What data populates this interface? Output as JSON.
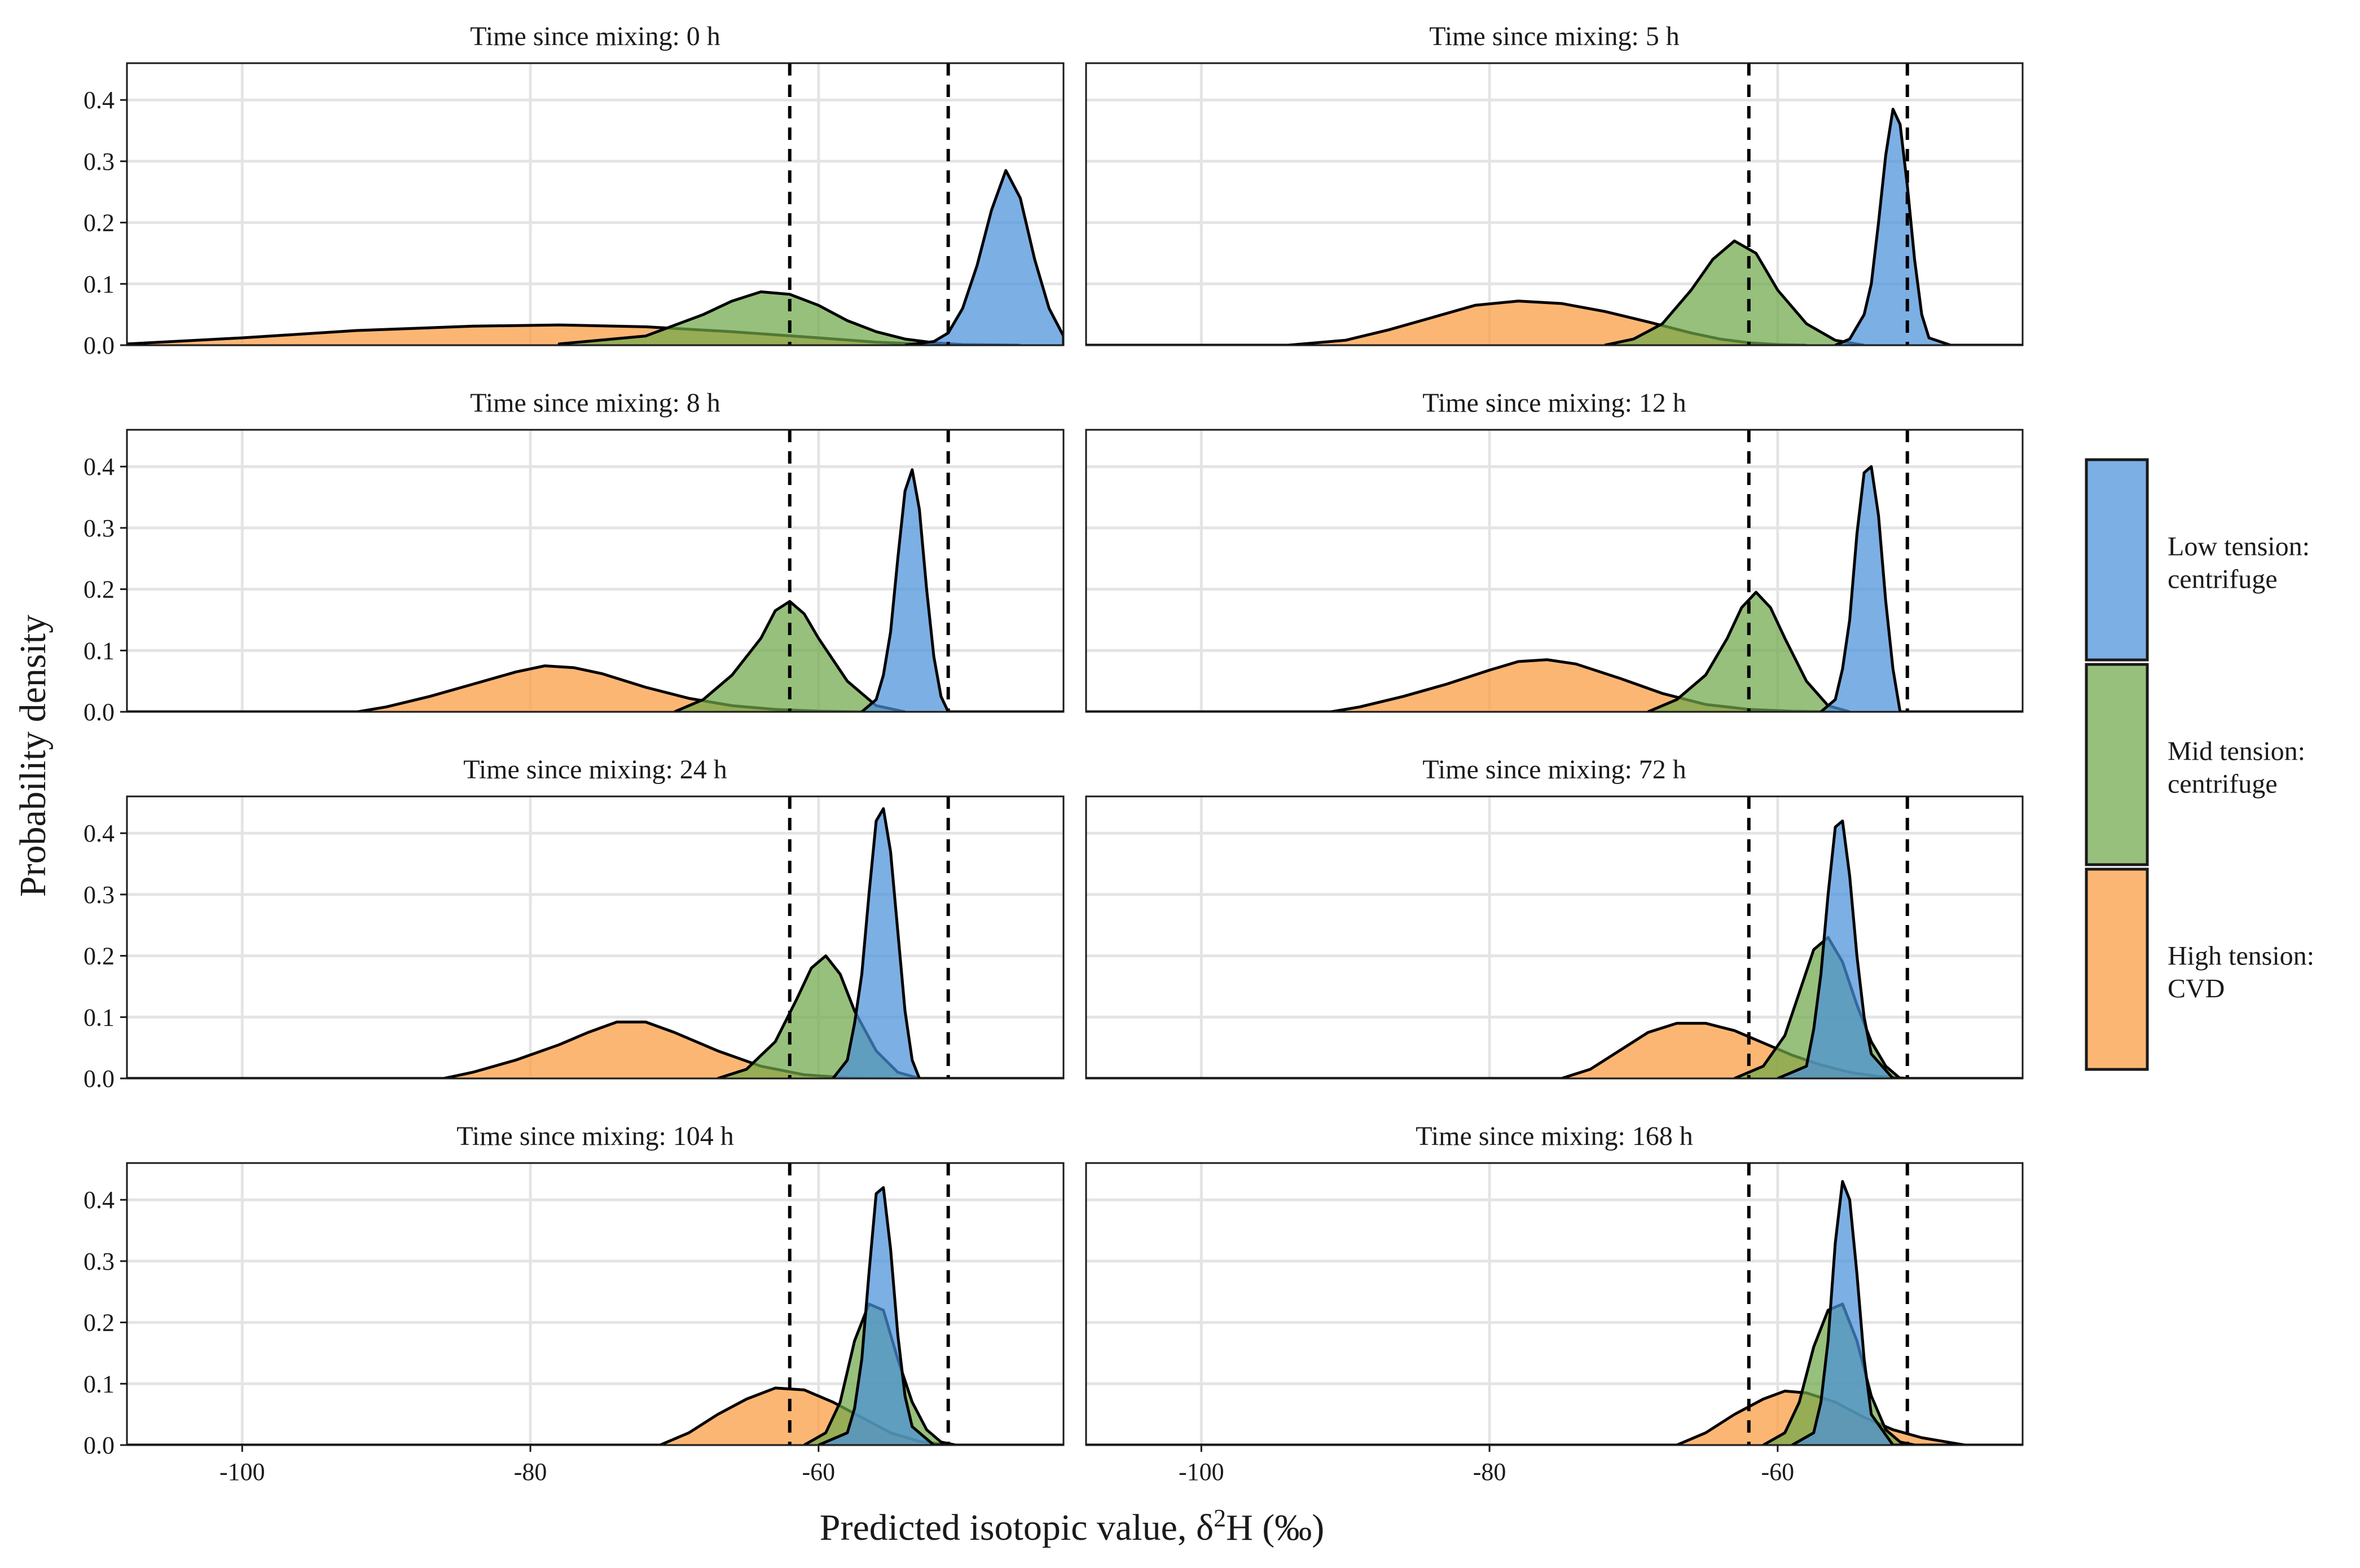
{
  "chart_data": {
    "type": "area",
    "facet_title_prefix": "Time since mixing: ",
    "xlabel": "Predicted isotopic value, δ",
    "xlabel_sup": "2",
    "xlabel_suffix": "H (‰)",
    "ylabel": "Probability density",
    "xlim": [
      -108,
      -43
    ],
    "ylim": [
      0,
      0.46
    ],
    "xticks": [
      -100,
      -80,
      -60
    ],
    "yticks": [
      0.0,
      0.1,
      0.2,
      0.3,
      0.4
    ],
    "xtick_labels": [
      "-100",
      "-80",
      "-60"
    ],
    "ytick_labels": [
      "0.0",
      "0.1",
      "0.2",
      "0.3",
      "0.4"
    ],
    "grid": true,
    "reference_lines": [
      -62,
      -51
    ],
    "legend": {
      "position": "right",
      "entries": [
        {
          "key": "low",
          "line1": "Low tension:",
          "line2": "centrifuge",
          "color": "#4a90d9"
        },
        {
          "key": "mid",
          "line1": "Mid tension:",
          "line2": "centrifuge",
          "color": "#6fa84a"
        },
        {
          "key": "high",
          "line1": "High tension:",
          "line2": "CVD",
          "color": "#fb9a3e"
        }
      ]
    },
    "panels": [
      {
        "title": "Time since mixing: 0 h",
        "series": [
          {
            "group": "high",
            "x": [
              -108,
              -100,
              -92,
              -84,
              -78,
              -72,
              -66,
              -60,
              -56,
              -52
            ],
            "y": [
              0.002,
              0.012,
              0.024,
              0.031,
              0.033,
              0.03,
              0.022,
              0.012,
              0.005,
              0.001
            ]
          },
          {
            "group": "mid",
            "x": [
              -78,
              -72,
              -68,
              -66,
              -64,
              -62,
              -60,
              -58,
              -56,
              -54,
              -52,
              -50,
              -46
            ],
            "y": [
              0.002,
              0.015,
              0.05,
              0.072,
              0.087,
              0.083,
              0.065,
              0.04,
              0.022,
              0.01,
              0.004,
              0.001,
              0
            ]
          },
          {
            "group": "low",
            "x": [
              -54,
              -52,
              -51,
              -50,
              -49,
              -48,
              -47,
              -46,
              -45,
              -44,
              -43
            ],
            "y": [
              0,
              0.006,
              0.02,
              0.06,
              0.13,
              0.22,
              0.285,
              0.24,
              0.14,
              0.06,
              0.015
            ]
          }
        ]
      },
      {
        "title": "Time since mixing: 5 h",
        "series": [
          {
            "group": "high",
            "x": [
              -108,
              -94,
              -90,
              -87,
              -84,
              -81,
              -78,
              -75,
              -72,
              -69,
              -66,
              -64,
              -62,
              -60,
              -58
            ],
            "y": [
              0,
              0,
              0.008,
              0.025,
              0.045,
              0.065,
              0.072,
              0.068,
              0.055,
              0.038,
              0.02,
              0.01,
              0.004,
              0.001,
              0
            ]
          },
          {
            "group": "mid",
            "x": [
              -72,
              -70,
              -68,
              -66,
              -64.5,
              -63,
              -61.5,
              -60,
              -58,
              -56,
              -54
            ],
            "y": [
              0,
              0.01,
              0.035,
              0.09,
              0.14,
              0.17,
              0.15,
              0.09,
              0.035,
              0.008,
              0
            ]
          },
          {
            "group": "low",
            "x": [
              -56,
              -55,
              -54,
              -53.5,
              -53,
              -52.5,
              -52,
              -51.5,
              -51,
              -50.5,
              -50,
              -49.5,
              -48,
              -43
            ],
            "y": [
              0,
              0.01,
              0.05,
              0.1,
              0.2,
              0.31,
              0.385,
              0.36,
              0.26,
              0.14,
              0.05,
              0.012,
              0,
              0
            ]
          }
        ]
      },
      {
        "title": "Time since mixing: 8 h",
        "series": [
          {
            "group": "high",
            "x": [
              -108,
              -92,
              -90,
              -87,
              -84,
              -81,
              -79,
              -77,
              -75,
              -72,
              -69,
              -66,
              -63,
              -60,
              -57
            ],
            "y": [
              0,
              0,
              0.008,
              0.025,
              0.045,
              0.065,
              0.075,
              0.072,
              0.062,
              0.04,
              0.022,
              0.01,
              0.004,
              0.001,
              0
            ]
          },
          {
            "group": "mid",
            "x": [
              -70,
              -68,
              -66,
              -64,
              -63,
              -62,
              -61,
              -60,
              -58,
              -56,
              -54
            ],
            "y": [
              0,
              0.02,
              0.06,
              0.12,
              0.165,
              0.18,
              0.16,
              0.12,
              0.05,
              0.01,
              0
            ]
          },
          {
            "group": "low",
            "x": [
              -57,
              -56,
              -55.5,
              -55,
              -54.5,
              -54,
              -53.5,
              -53,
              -52.5,
              -52,
              -51.5,
              -51,
              -43
            ],
            "y": [
              0,
              0.02,
              0.06,
              0.13,
              0.25,
              0.36,
              0.395,
              0.33,
              0.2,
              0.09,
              0.025,
              0,
              0
            ]
          }
        ]
      },
      {
        "title": "Time since mixing: 12 h",
        "series": [
          {
            "group": "high",
            "x": [
              -108,
              -91,
              -89,
              -86,
              -83,
              -80,
              -78,
              -76,
              -74,
              -71,
              -68,
              -65,
              -62,
              -59,
              -56
            ],
            "y": [
              0,
              0,
              0.008,
              0.025,
              0.045,
              0.068,
              0.082,
              0.085,
              0.078,
              0.055,
              0.03,
              0.012,
              0.004,
              0.001,
              0
            ]
          },
          {
            "group": "mid",
            "x": [
              -69,
              -67,
              -65,
              -63.5,
              -62.5,
              -61.5,
              -60.5,
              -59.5,
              -58,
              -56.5,
              -55
            ],
            "y": [
              0,
              0.02,
              0.06,
              0.12,
              0.17,
              0.195,
              0.17,
              0.12,
              0.05,
              0.01,
              0
            ]
          },
          {
            "group": "low",
            "x": [
              -57,
              -56,
              -55.5,
              -55,
              -54.5,
              -54,
              -53.5,
              -53,
              -52.5,
              -52,
              -51.5,
              -43
            ],
            "y": [
              0,
              0.02,
              0.07,
              0.15,
              0.29,
              0.39,
              0.4,
              0.32,
              0.18,
              0.07,
              0,
              0
            ]
          }
        ]
      },
      {
        "title": "Time since mixing: 24 h",
        "series": [
          {
            "group": "high",
            "x": [
              -108,
              -86,
              -84,
              -81,
              -78,
              -76,
              -74,
              -72,
              -70,
              -67,
              -64,
              -61,
              -58,
              -55
            ],
            "y": [
              0,
              0,
              0.01,
              0.03,
              0.055,
              0.075,
              0.092,
              0.092,
              0.075,
              0.045,
              0.02,
              0.006,
              0.001,
              0
            ]
          },
          {
            "group": "mid",
            "x": [
              -67,
              -65,
              -63,
              -61.5,
              -60.5,
              -59.5,
              -58.5,
              -57.5,
              -56,
              -54.5,
              -53
            ],
            "y": [
              0,
              0.015,
              0.06,
              0.13,
              0.18,
              0.2,
              0.17,
              0.11,
              0.045,
              0.01,
              0
            ]
          },
          {
            "group": "low",
            "x": [
              -59,
              -58,
              -57.5,
              -57,
              -56.5,
              -56,
              -55.5,
              -55,
              -54.5,
              -54,
              -53.5,
              -53,
              -43
            ],
            "y": [
              0,
              0.03,
              0.09,
              0.17,
              0.3,
              0.42,
              0.44,
              0.37,
              0.24,
              0.11,
              0.03,
              0,
              0
            ]
          }
        ]
      },
      {
        "title": "Time since mixing: 72 h",
        "series": [
          {
            "group": "high",
            "x": [
              -108,
              -75,
              -73,
              -71,
              -69,
              -67,
              -65,
              -63,
              -61,
              -59,
              -57,
              -55,
              -53,
              -51
            ],
            "y": [
              0,
              0,
              0.015,
              0.045,
              0.075,
              0.09,
              0.09,
              0.078,
              0.058,
              0.038,
              0.022,
              0.01,
              0.003,
              0
            ]
          },
          {
            "group": "mid",
            "x": [
              -63,
              -61,
              -59.5,
              -58.5,
              -57.5,
              -56.5,
              -55.5,
              -54.5,
              -53.5,
              -52.5,
              -51.5
            ],
            "y": [
              0,
              0.02,
              0.07,
              0.14,
              0.21,
              0.23,
              0.19,
              0.12,
              0.06,
              0.02,
              0
            ]
          },
          {
            "group": "low",
            "x": [
              -60,
              -58,
              -57.5,
              -57,
              -56.5,
              -56,
              -55.5,
              -55,
              -54.5,
              -54,
              -53.5,
              -52,
              -43
            ],
            "y": [
              0,
              0.02,
              0.08,
              0.17,
              0.3,
              0.41,
              0.42,
              0.33,
              0.2,
              0.1,
              0.04,
              0,
              0
            ]
          }
        ]
      },
      {
        "title": "Time since mixing: 104 h",
        "series": [
          {
            "group": "high",
            "x": [
              -108,
              -71,
              -69,
              -67,
              -65,
              -63,
              -61,
              -59,
              -57,
              -55,
              -53,
              -51
            ],
            "y": [
              0,
              0,
              0.02,
              0.05,
              0.075,
              0.093,
              0.09,
              0.07,
              0.045,
              0.02,
              0.006,
              0
            ]
          },
          {
            "group": "mid",
            "x": [
              -61,
              -59.5,
              -58.5,
              -57.5,
              -56.5,
              -55.5,
              -54.5,
              -53.5,
              -52.5,
              -51.5,
              -50.5
            ],
            "y": [
              0,
              0.02,
              0.07,
              0.17,
              0.23,
              0.22,
              0.14,
              0.07,
              0.025,
              0.005,
              0
            ]
          },
          {
            "group": "low",
            "x": [
              -60,
              -58,
              -57.5,
              -57,
              -56.5,
              -56,
              -55.5,
              -55,
              -54.5,
              -54,
              -53.5,
              -52,
              -43
            ],
            "y": [
              0,
              0.02,
              0.06,
              0.14,
              0.28,
              0.41,
              0.42,
              0.32,
              0.18,
              0.08,
              0.03,
              0,
              0
            ]
          }
        ]
      },
      {
        "title": "Time since mixing: 168 h",
        "series": [
          {
            "group": "high",
            "x": [
              -108,
              -67,
              -65,
              -63,
              -61,
              -59.5,
              -58,
              -56,
              -54,
              -52,
              -50,
              -48,
              -47
            ],
            "y": [
              0,
              0,
              0.02,
              0.05,
              0.075,
              0.088,
              0.085,
              0.07,
              0.045,
              0.025,
              0.012,
              0.004,
              0
            ]
          },
          {
            "group": "mid",
            "x": [
              -61,
              -59.5,
              -58.5,
              -57.5,
              -56.5,
              -55.5,
              -54.5,
              -53.5,
              -52.5,
              -51.5,
              -50.5
            ],
            "y": [
              0,
              0.02,
              0.07,
              0.16,
              0.22,
              0.23,
              0.17,
              0.08,
              0.025,
              0.005,
              0
            ]
          },
          {
            "group": "low",
            "x": [
              -59,
              -57.5,
              -57,
              -56.5,
              -56,
              -55.5,
              -55,
              -54.5,
              -54,
              -53.5,
              -52,
              -43
            ],
            "y": [
              0,
              0.02,
              0.07,
              0.17,
              0.33,
              0.43,
              0.4,
              0.28,
              0.14,
              0.05,
              0,
              0
            ]
          }
        ]
      }
    ]
  }
}
